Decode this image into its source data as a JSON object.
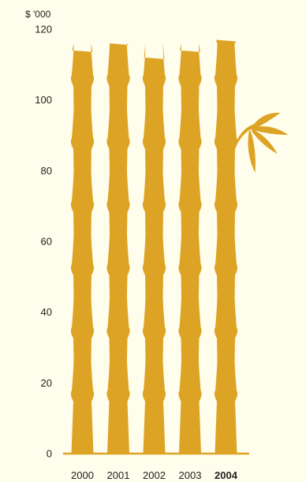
{
  "chart_data": {
    "type": "bar",
    "unit_label": "$ '000",
    "categories": [
      "2000",
      "2001",
      "2002",
      "2003",
      "2004"
    ],
    "highlight_category": "2004",
    "values": [
      114,
      116,
      112,
      114,
      117
    ],
    "ylim": [
      0,
      120
    ],
    "yticks": [
      0,
      20,
      40,
      60,
      80,
      100,
      120
    ],
    "bar_color": "#dda324",
    "baseline_color": "#dda324",
    "grid": false,
    "decoration": "bamboo-leaf"
  }
}
